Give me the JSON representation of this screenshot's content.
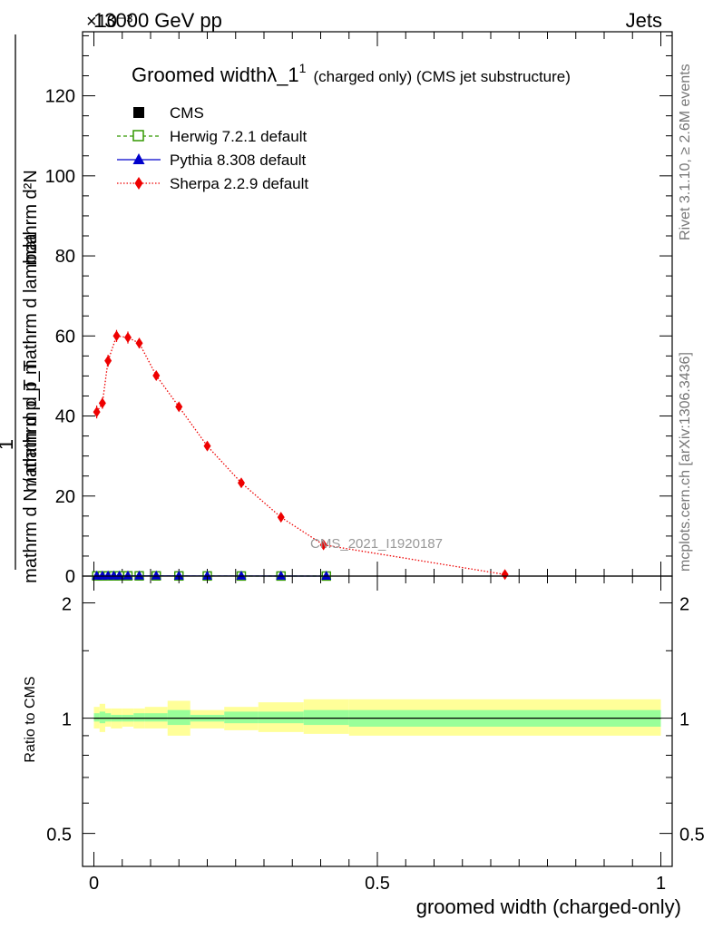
{
  "header": {
    "energy": "13000 GeV pp",
    "process": "Jets",
    "exponent": "×10⁻³"
  },
  "side_labels": {
    "rivet": "Rivet 3.1.10, ≥ 2.6M events",
    "mcplots": "mcplots.cern.ch [arXiv:1306.3436]"
  },
  "watermark": "CMS_2021_I1920187",
  "chart_data": [
    {
      "type": "line",
      "title": "Groomed widthλ_1¹ (charged only) (CMS jet substructure)",
      "title_main": "Groomed width",
      "title_lambda": "λ_1",
      "title_sup": "1",
      "title_rest": "(charged only) (CMS jet substructure)",
      "ylabel_numerator": "mathrm d²N",
      "ylabel_numerator2": "mathrm d p_T mathrm d lambda",
      "ylabel_one": "1",
      "ylabel_denominator": "mathrm d N / mathrm d p_T",
      "xlim": [
        -0.02,
        1.02
      ],
      "ylim": [
        0,
        136
      ],
      "yticks": [
        0,
        20,
        40,
        60,
        80,
        100,
        120
      ],
      "ytick_labels": [
        "0",
        "20",
        "40",
        "60",
        "80",
        "100",
        "120"
      ],
      "legend_position": "top-left",
      "series": [
        {
          "name": "CMS",
          "marker": "filled-square",
          "color": "#000000",
          "x": [
            0.005,
            0.015,
            0.025,
            0.035,
            0.045,
            0.06,
            0.08,
            0.11,
            0.15,
            0.2,
            0.26,
            0.33,
            0.41
          ],
          "y": [
            0.04,
            0.04,
            0.05,
            0.06,
            0.06,
            0.06,
            0.06,
            0.05,
            0.04,
            0.03,
            0.02,
            0.015,
            0.008
          ]
        },
        {
          "name": "Herwig 7.2.1 default",
          "marker": "open-square",
          "color": "#339900",
          "style": "dashed",
          "x": [
            0.005,
            0.015,
            0.025,
            0.035,
            0.045,
            0.06,
            0.08,
            0.11,
            0.15,
            0.2,
            0.26,
            0.33,
            0.41
          ],
          "y": [
            0.04,
            0.04,
            0.05,
            0.06,
            0.06,
            0.06,
            0.06,
            0.05,
            0.04,
            0.03,
            0.02,
            0.015,
            0.008
          ]
        },
        {
          "name": "Pythia 8.308 default",
          "marker": "triangle",
          "color": "#0000cc",
          "style": "solid",
          "x": [
            0.005,
            0.015,
            0.025,
            0.035,
            0.045,
            0.06,
            0.08,
            0.11,
            0.15,
            0.2,
            0.26,
            0.33,
            0.41
          ],
          "y": [
            0.04,
            0.04,
            0.05,
            0.06,
            0.06,
            0.06,
            0.06,
            0.05,
            0.04,
            0.03,
            0.02,
            0.015,
            0.008
          ]
        },
        {
          "name": "Sherpa 2.2.9 default",
          "marker": "diamond",
          "color": "#ee0000",
          "style": "dotted",
          "x": [
            0.005,
            0.015,
            0.025,
            0.04,
            0.06,
            0.08,
            0.11,
            0.15,
            0.2,
            0.26,
            0.33,
            0.405,
            0.725
          ],
          "y": [
            41,
            43.2,
            53.8,
            60,
            59.6,
            58.2,
            50.1,
            42.3,
            32.5,
            23.3,
            14.7,
            7.8,
            0.4
          ],
          "yerr": [
            1.6,
            1.4,
            1.5,
            1.5,
            1.5,
            1.3,
            1.0,
            0.8,
            0.6,
            0.5,
            0.4,
            0.3,
            0.1
          ]
        }
      ]
    },
    {
      "type": "line",
      "title": "",
      "xlabel": "groomed width (charged-only)",
      "ylabel": "Ratio to CMS",
      "xlim": [
        -0.02,
        1.02
      ],
      "xticks": [
        0,
        0.5,
        1
      ],
      "xtick_labels": [
        "0",
        "0.5",
        "1"
      ],
      "ylim": [
        0.41,
        2.35
      ],
      "scale": "log",
      "yticks": [
        0.5,
        1,
        2
      ],
      "ytick_labels": [
        "0.5",
        "1",
        "2"
      ],
      "bins": [
        0,
        0.01,
        0.02,
        0.03,
        0.05,
        0.07,
        0.09,
        0.13,
        0.17,
        0.23,
        0.29,
        0.37,
        0.45,
        1.0
      ],
      "band_outer_lo": [
        0.94,
        0.92,
        0.95,
        0.94,
        0.95,
        0.94,
        0.94,
        0.9,
        0.94,
        0.93,
        0.92,
        0.91,
        0.9
      ],
      "band_outer_hi": [
        1.07,
        1.09,
        1.06,
        1.06,
        1.06,
        1.06,
        1.07,
        1.11,
        1.05,
        1.07,
        1.1,
        1.12,
        1.12
      ],
      "band_inner_lo": [
        0.98,
        0.97,
        0.98,
        0.98,
        0.98,
        0.98,
        0.98,
        0.96,
        0.98,
        0.97,
        0.97,
        0.96,
        0.95
      ],
      "band_inner_hi": [
        1.03,
        1.04,
        1.03,
        1.02,
        1.02,
        1.03,
        1.03,
        1.05,
        1.02,
        1.04,
        1.04,
        1.05,
        1.05
      ],
      "series": [
        {
          "name": "CMS",
          "color": "#000000",
          "x": [
            0,
            1.0
          ],
          "y": [
            1,
            1
          ]
        }
      ]
    }
  ],
  "colors": {
    "band_outer": "#ffff99",
    "band_inner": "#99ff99"
  }
}
